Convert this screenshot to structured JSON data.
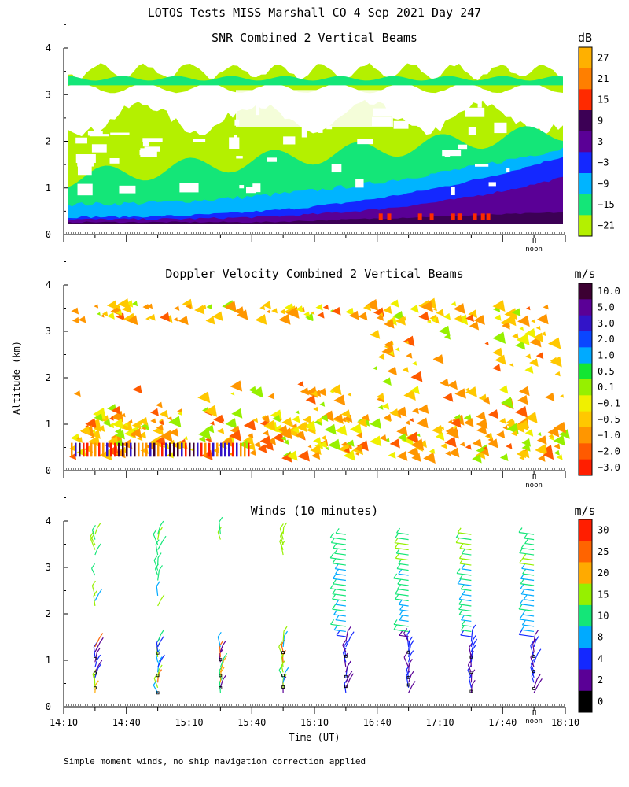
{
  "figure": {
    "title": "LOTOS Tests MISS Marshall CO   4 Sep 2021 Day 247",
    "ylabel": "Altitude (km)",
    "xlabel": "Time (UT)",
    "footnote": "Simple moment winds, no ship navigation correction applied",
    "noon_label": "noon"
  },
  "chart_data": [
    {
      "type": "heatmap",
      "title": "SNR Combined 2 Vertical Beams",
      "xlabel": "",
      "ylabel": "Altitude (km)",
      "ylim": [
        0,
        4
      ],
      "yticks": [
        "0",
        "1",
        "2",
        "3",
        "4"
      ],
      "xlim_hours": [
        14.1667,
        18.1667
      ],
      "colorbar": {
        "unit": "dB",
        "labels": [
          "27",
          "21",
          "15",
          "9",
          "3",
          "−3",
          "−9",
          "−15",
          "−21"
        ],
        "colors": [
          "#ffb000",
          "#ff7f00",
          "#ff2a00",
          "#3c0055",
          "#5a0096",
          "#1428ff",
          "#00b4ff",
          "#14e678",
          "#b4f000"
        ]
      },
      "data_summary": "Returns roughly 0.2-3.7 km; strongest SNR (9 to 27 dB) below 0.5 km increasing after 16:40 UT; layer near 3.3-3.5 km at about -21 to -15 dB"
    },
    {
      "type": "heatmap",
      "title": "Doppler Velocity Combined 2 Vertical Beams",
      "xlabel": "",
      "ylabel": "Altitude (km)",
      "ylim": [
        0,
        4
      ],
      "yticks": [
        "0",
        "1",
        "2",
        "3",
        "4"
      ],
      "xlim_hours": [
        14.1667,
        18.1667
      ],
      "colorbar": {
        "unit": "m/s",
        "labels": [
          "10.0",
          "5.0",
          "3.0",
          "2.0",
          "1.0",
          "0.5",
          "0.1",
          "−0.1",
          "−0.5",
          "−1.0",
          "−2.0",
          "−3.0"
        ],
        "colors": [
          "#3c0032",
          "#5a0096",
          "#3214c8",
          "#0a46ff",
          "#00aaff",
          "#14e632",
          "#96f000",
          "#f0f000",
          "#ffc800",
          "#ff9600",
          "#ff5a00",
          "#ff1e00"
        ]
      },
      "data_summary": "Mostly weak downward motion (-0.1 to -1.0 m/s) below 3.5 km; mixed signs near 0.4 km before 15:50 UT"
    },
    {
      "type": "scatter",
      "title": "Winds (10 minutes)",
      "xlabel": "Time (UT)",
      "ylabel": "Altitude (km)",
      "ylim": [
        0,
        4
      ],
      "yticks": [
        "0",
        "1",
        "2",
        "3",
        "4"
      ],
      "xlim_hours": [
        14.1667,
        18.1667
      ],
      "xticks": [
        "14:10",
        "14:40",
        "15:10",
        "15:40",
        "16:10",
        "16:40",
        "17:10",
        "17:40",
        "18:10"
      ],
      "colorbar": {
        "unit": "m/s",
        "labels": [
          "30",
          "25",
          "20",
          "15",
          "10",
          "8",
          "4",
          "2",
          "0"
        ],
        "colors": [
          "#ff1e00",
          "#ff6400",
          "#ffaa00",
          "#96f000",
          "#14e678",
          "#00aaff",
          "#1428ff",
          "#5a0096",
          "#000000"
        ]
      },
      "profile_times": [
        "14:25",
        "14:55",
        "15:25",
        "15:55",
        "16:25",
        "16:55",
        "17:25",
        "17:55"
      ],
      "data_summary": "Barb profiles every 30 min; light winds (0-8 m/s) in the lowest 1.5 km early, 2-10 m/s after 16:10 UT; 10-20 m/s aloft near 2-3.5 km"
    }
  ]
}
